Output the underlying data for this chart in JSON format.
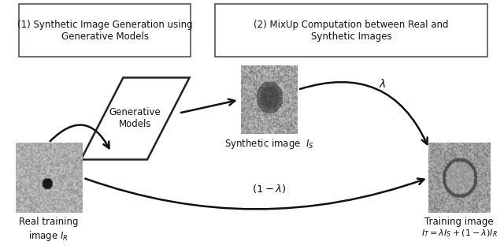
{
  "fig_width": 6.4,
  "fig_height": 3.16,
  "background_color": "#ffffff",
  "box1_text": "(1) Synthetic Image Generation using\nGenerative Models",
  "box2_text": "(2) MixUp Computation between Real and\nSynthetic Images",
  "gen_model_label": "Generative\nModels",
  "synth_label": "Synthetic image  $I_S$",
  "real_label": "Real training\nimage $I_R$",
  "training_label": "Training image",
  "equation_label": "$I_T = \\lambda I_S + (1 - \\lambda)I_R$",
  "lambda_label": "$\\lambda$",
  "one_minus_lambda_label": "$(1 - \\lambda)$",
  "arrow_color": "#111111",
  "text_color": "#111111",
  "box_edge_color": "#555555"
}
